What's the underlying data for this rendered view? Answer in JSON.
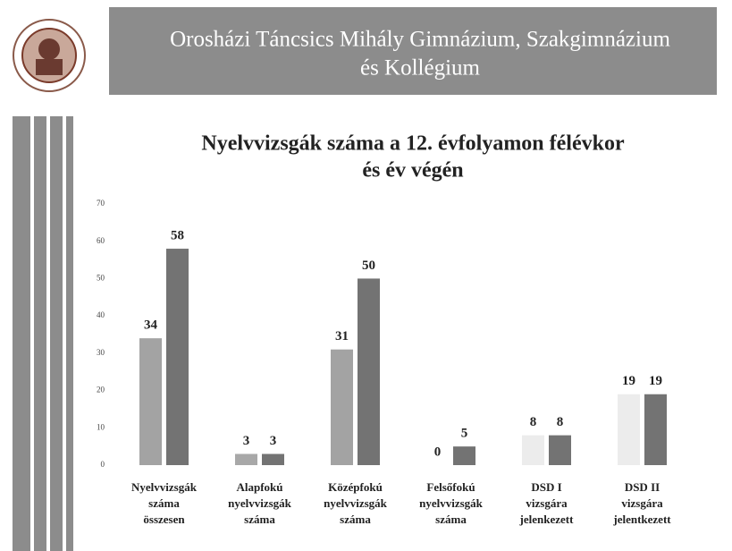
{
  "header": {
    "title": [
      "Orosházi Táncsics Mihály Gimnázium, Szakgimnázium",
      "és Kollégium"
    ]
  },
  "chart_data": {
    "type": "bar",
    "title": [
      "Nyelvvizsgák száma a 12. évfolyamon félévkor",
      "és év végén"
    ],
    "categories": [
      [
        "Nyelvvizsgák",
        "száma",
        "összesen"
      ],
      [
        "Alapfokú",
        "nyelvvizsgák",
        "száma"
      ],
      [
        "Középfokú",
        "nyelvvizsgák",
        "száma"
      ],
      [
        "Felsőfokú",
        "nyelvvizsgák",
        "száma"
      ],
      [
        "DSD I",
        "vizsgára",
        "jelenkezett"
      ],
      [
        "DSD II",
        "vizsgára",
        "jelentkezett"
      ]
    ],
    "series": [
      {
        "colors": [
          "#a3a3a3",
          "#a8a8a8",
          "#a3a3a3",
          "#b0b0b0",
          "#ececec",
          "#ececec"
        ],
        "values": [
          34,
          3,
          31,
          0,
          8,
          19
        ]
      },
      {
        "color": "#737373",
        "values": [
          58,
          3,
          50,
          5,
          8,
          19
        ]
      }
    ],
    "ylim": [
      0,
      70
    ],
    "yticks": [
      0,
      10,
      20,
      30,
      40,
      50,
      60,
      70
    ]
  }
}
